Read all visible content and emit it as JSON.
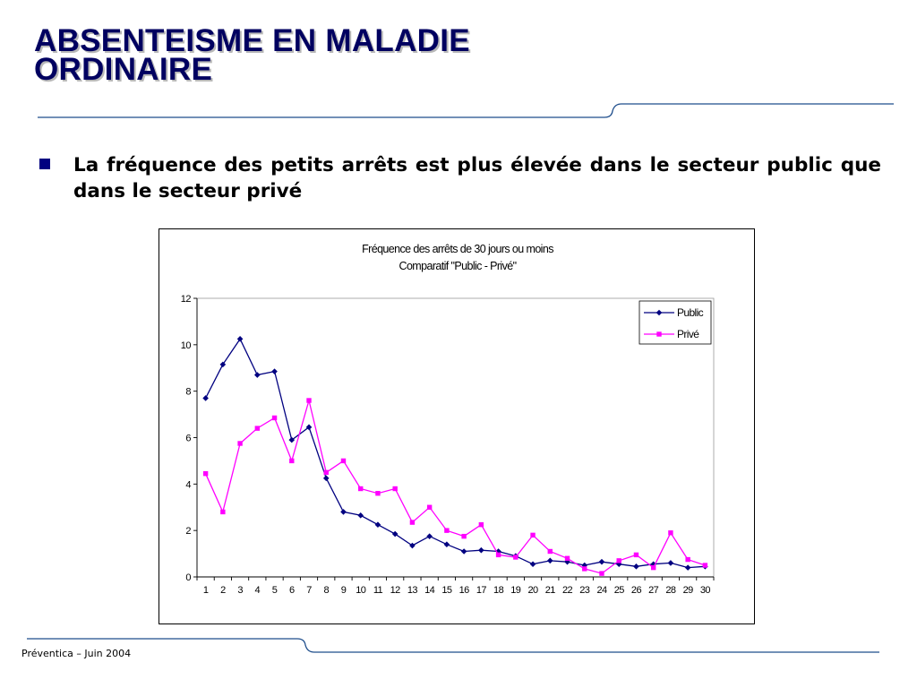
{
  "slide": {
    "title_line1": "ABSENTEISME EN MALADIE",
    "title_line2": "ORDINAIRE",
    "bullet": "La fréquence des petits arrêts est plus élevée dans le secteur public que dans le secteur privé",
    "footer": "Préventica – Juin 2004"
  },
  "colors": {
    "title": "#000060",
    "bullet": "#000080",
    "rule": "#1f4e8c"
  },
  "chart_data": {
    "type": "line",
    "title": "Fréquence des arrêts de 30 jours ou moins",
    "subtitle": "Comparatif \"Public - Privé\"",
    "xlabel": "",
    "ylabel": "",
    "x": [
      1,
      2,
      3,
      4,
      5,
      6,
      7,
      8,
      9,
      10,
      11,
      12,
      13,
      14,
      15,
      16,
      17,
      18,
      19,
      20,
      21,
      22,
      23,
      24,
      25,
      26,
      27,
      28,
      29,
      30
    ],
    "ylim": [
      0,
      12
    ],
    "yticks": [
      0,
      2,
      4,
      6,
      8,
      10,
      12
    ],
    "grid": false,
    "legend": "top-right",
    "series": [
      {
        "name": "Public",
        "color": "#000080",
        "marker": "diamond",
        "values": [
          7.7,
          9.15,
          10.25,
          8.7,
          8.85,
          5.9,
          6.45,
          4.25,
          2.8,
          2.65,
          2.25,
          1.85,
          1.35,
          1.75,
          1.4,
          1.1,
          1.15,
          1.1,
          0.9,
          0.55,
          0.7,
          0.65,
          0.5,
          0.65,
          0.55,
          0.45,
          0.55,
          0.6,
          0.4,
          0.45
        ]
      },
      {
        "name": "Privé",
        "color": "#ff00ff",
        "marker": "square",
        "values": [
          4.45,
          2.8,
          5.75,
          6.4,
          6.85,
          5.0,
          7.6,
          4.5,
          5.0,
          3.8,
          3.6,
          3.8,
          2.35,
          3.0,
          2.0,
          1.75,
          2.25,
          0.95,
          0.85,
          1.8,
          1.1,
          0.8,
          0.35,
          0.15,
          0.7,
          0.95,
          0.4,
          1.9,
          0.75,
          0.5
        ]
      }
    ]
  }
}
